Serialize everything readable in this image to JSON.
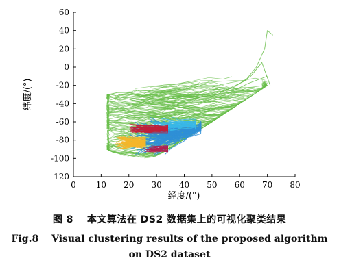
{
  "chart_data": {
    "type": "line",
    "xlabel": "经度/(°)",
    "ylabel": "纬度/(°)",
    "xlim": [
      0,
      80
    ],
    "ylim": [
      -120,
      60
    ],
    "xticks": [
      0,
      10,
      20,
      30,
      40,
      50,
      60,
      70,
      80
    ],
    "yticks": [
      60,
      40,
      20,
      0,
      -20,
      -40,
      -60,
      -80,
      -100,
      -120
    ],
    "grid": false,
    "legend": "none",
    "series": [
      {
        "color": "#6abf4b",
        "x_range": [
          12,
          72
        ],
        "y_range": [
          -105,
          42
        ],
        "line_count": 260
      },
      {
        "color": "#2f8fd6",
        "x_range": [
          20,
          46
        ],
        "y_range": [
          -97,
          -55
        ],
        "line_count": 90
      },
      {
        "color": "#38b7e8",
        "x_range": [
          28,
          44
        ],
        "y_range": [
          -70,
          -55
        ],
        "line_count": 30
      },
      {
        "color": "#f5b62a",
        "x_range": [
          15,
          26
        ],
        "y_range": [
          -90,
          -75
        ],
        "line_count": 60
      },
      {
        "color": "#c0203a",
        "x_range": [
          20,
          34
        ],
        "y_range": [
          -72,
          -62
        ],
        "line_count": 45
      },
      {
        "color": "#b02050",
        "x_range": [
          25,
          34
        ],
        "y_range": [
          -93,
          -86
        ],
        "line_count": 25
      }
    ]
  },
  "caption": {
    "chinese": "图 8 　本文算法在 DS2 数据集上的可视化聚类结果",
    "english_line1": "Fig.8 　Visual clustering results of the proposed algorithm",
    "english_line2": "on DS2 dataset"
  }
}
